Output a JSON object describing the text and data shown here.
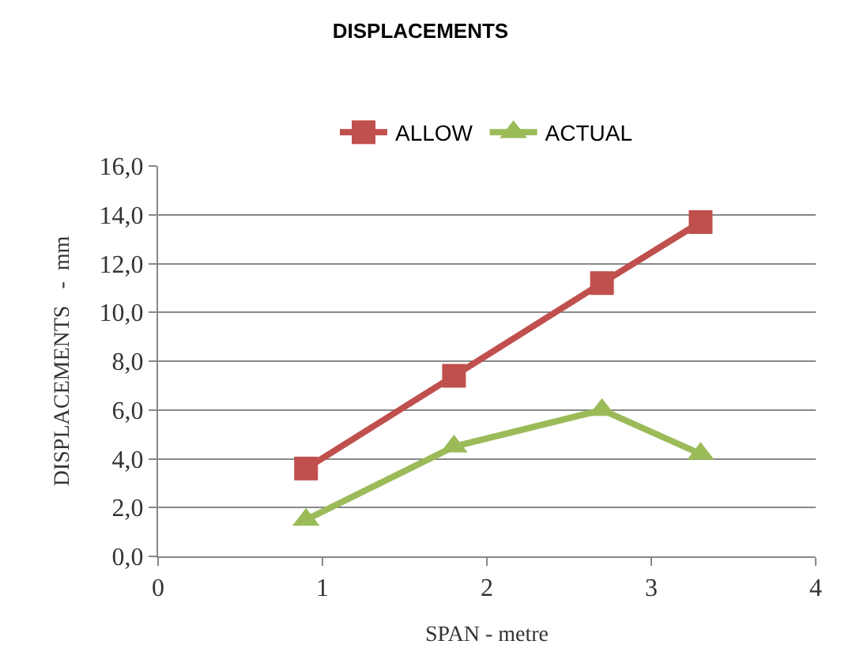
{
  "chart_data": {
    "type": "line",
    "title": "DISPLACEMENTS",
    "xlabel": "SPAN - metre",
    "ylabel": "DISPLACEMENTS   -  mm",
    "x": [
      0.9,
      1.8,
      2.7,
      3.3
    ],
    "series": [
      {
        "name": "ALLOW",
        "color": "#c0504d",
        "values": [
          3.6,
          7.4,
          11.2,
          13.7
        ],
        "marker": "square"
      },
      {
        "name": "ACTUAL",
        "color": "#9bbb59",
        "values": [
          1.5,
          4.5,
          6.0,
          4.2
        ],
        "marker": "triangle"
      }
    ],
    "xlim": [
      0,
      4
    ],
    "xticks": [
      0,
      1,
      2,
      3,
      4
    ],
    "ylim": [
      0,
      16
    ],
    "yticks": [
      {
        "value": 0,
        "label": "0,0"
      },
      {
        "value": 2,
        "label": "2,0"
      },
      {
        "value": 4,
        "label": "4,0"
      },
      {
        "value": 6,
        "label": "6,0"
      },
      {
        "value": 8,
        "label": "8,0"
      },
      {
        "value": 10,
        "label": "10,0"
      },
      {
        "value": 12,
        "label": "12,0"
      },
      {
        "value": 14,
        "label": "14,0"
      },
      {
        "value": 16,
        "label": "16,0"
      }
    ],
    "grid": "y",
    "legend": "top",
    "line_style": "solid"
  }
}
